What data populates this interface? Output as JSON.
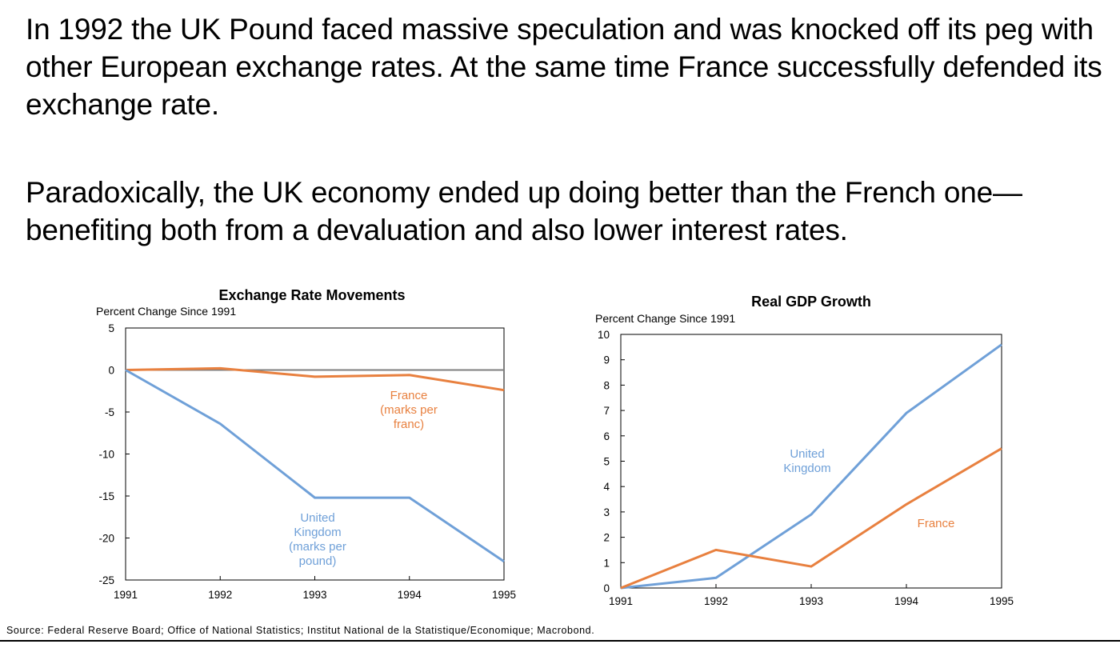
{
  "text": {
    "paragraph1": "In 1992 the UK Pound faced massive speculation and was knocked off its peg with other European exchange rates. At the same time France successfully defended its exchange rate.",
    "paragraph2": "Paradoxically, the UK economy ended up doing better than the French one—benefiting both from a devaluation and also lower interest rates.",
    "source": "Source: Federal Reserve Board; Office of National Statistics; Institut National de la Statistique/Economique; Macrobond."
  },
  "colors": {
    "united_kingdom": "#6fa0d8",
    "france": "#e8803f",
    "axis": "#000000",
    "zero_line": "#7f7f7f"
  },
  "chart_data": [
    {
      "type": "line",
      "title": "Exchange Rate Movements",
      "ylabel": "Percent Change Since 1991",
      "xlabel": "",
      "x": [
        "1991",
        "1992",
        "1993",
        "1994",
        "1995"
      ],
      "ylim": [
        -25,
        5
      ],
      "yticks": [
        5,
        0,
        -5,
        -10,
        -15,
        -20,
        -25
      ],
      "grid": false,
      "zero_line": true,
      "series": [
        {
          "name": "France (marks per franc)",
          "label_lines": [
            "France",
            "(marks per",
            "franc)"
          ],
          "color": "#e8803f",
          "values": [
            0,
            0.2,
            -0.8,
            -0.6,
            -2.4
          ]
        },
        {
          "name": "United Kingdom (marks per pound)",
          "label_lines": [
            "United",
            "Kingdom",
            "(marks per",
            "pound)"
          ],
          "color": "#6fa0d8",
          "values": [
            0,
            -6.4,
            -15.2,
            -15.2,
            -22.8
          ]
        }
      ]
    },
    {
      "type": "line",
      "title": "Real GDP Growth",
      "ylabel": "Percent Change Since 1991",
      "xlabel": "",
      "x": [
        "1991",
        "1992",
        "1993",
        "1994",
        "1995"
      ],
      "ylim": [
        0,
        10
      ],
      "yticks": [
        10,
        9,
        8,
        7,
        6,
        5,
        4,
        3,
        2,
        1,
        0
      ],
      "grid": false,
      "zero_line": false,
      "series": [
        {
          "name": "United Kingdom",
          "label_lines": [
            "United",
            "Kingdom"
          ],
          "color": "#6fa0d8",
          "values": [
            0,
            0.4,
            2.9,
            6.9,
            9.6
          ]
        },
        {
          "name": "France",
          "label_lines": [
            "France"
          ],
          "color": "#e8803f",
          "values": [
            0,
            1.5,
            0.85,
            3.3,
            5.5
          ]
        }
      ]
    }
  ]
}
